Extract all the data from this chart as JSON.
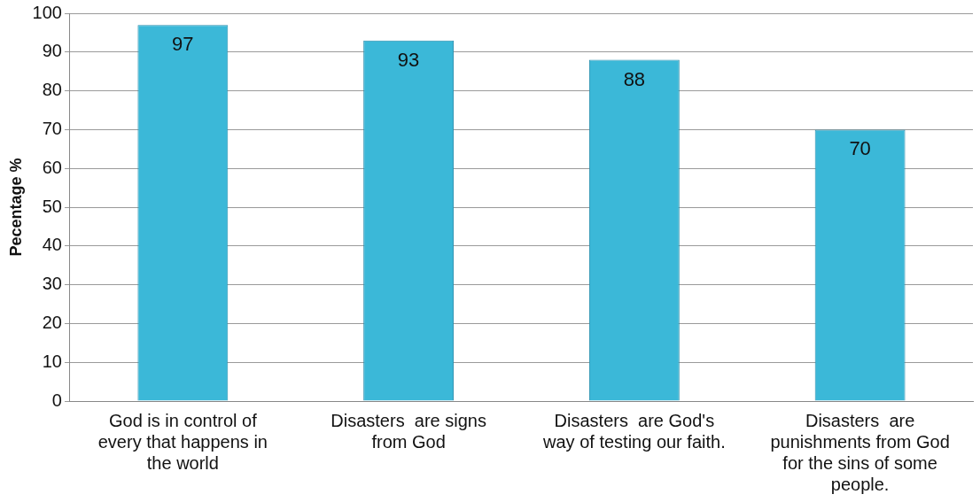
{
  "chart_data": {
    "type": "bar",
    "ylabel": "Pecentage %",
    "categories": [
      "God is in control of every that happens in the world",
      "Disasters  are signs from God",
      "Disasters  are God's way of testing our faith.",
      "Disasters  are punishments from God for the sins of some people."
    ],
    "values": [
      97,
      93,
      88,
      70
    ],
    "color": "#3bb8d8",
    "ylim": [
      0,
      100
    ],
    "yticks": [
      0,
      10,
      20,
      30,
      40,
      50,
      60,
      70,
      80,
      90,
      100
    ],
    "grid": "y",
    "data_labels": true
  }
}
